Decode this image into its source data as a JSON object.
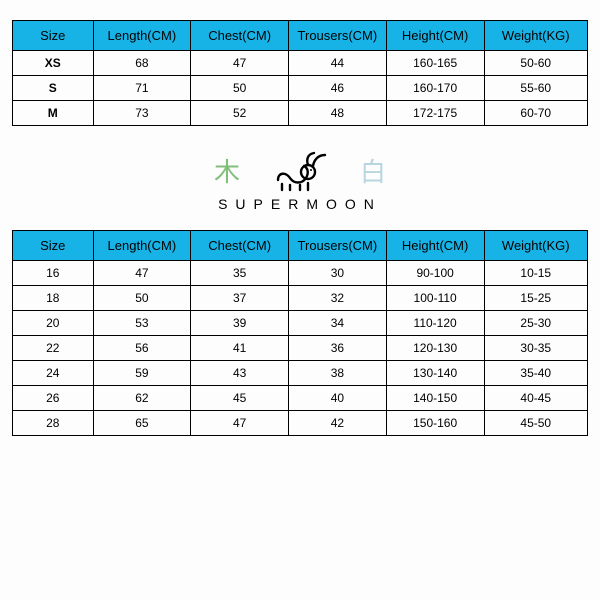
{
  "theme": {
    "header_bg": "#18b3e6",
    "border_color": "#000000",
    "text_color": "#000000",
    "cjk_left_color": "#7fbf7a",
    "cjk_right_color": "#b8d6e0",
    "rabbit_stroke": "#000000"
  },
  "table_adults": {
    "type": "table",
    "columns": [
      "Size",
      "Length(CM)",
      "Chest(CM)",
      "Trousers(CM)",
      "Height(CM)",
      "Weight(KG)"
    ],
    "col_widths_pct": [
      14,
      17,
      17,
      17,
      17,
      18
    ],
    "rows": [
      [
        "XS",
        "68",
        "47",
        "44",
        "160-165",
        "50-60"
      ],
      [
        "S",
        "71",
        "50",
        "46",
        "160-170",
        "55-60"
      ],
      [
        "M",
        "73",
        "52",
        "48",
        "172-175",
        "60-70"
      ]
    ],
    "first_col_bold": true
  },
  "brand": {
    "cjk_left": "木",
    "cjk_right": "白",
    "name": "SUPERMOON"
  },
  "table_kids": {
    "type": "table",
    "columns": [
      "Size",
      "Length(CM)",
      "Chest(CM)",
      "Trousers(CM)",
      "Height(CM)",
      "Weight(KG)"
    ],
    "col_widths_pct": [
      14,
      17,
      17,
      17,
      17,
      18
    ],
    "rows": [
      [
        "16",
        "47",
        "35",
        "30",
        "90-100",
        "10-15"
      ],
      [
        "18",
        "50",
        "37",
        "32",
        "100-110",
        "15-25"
      ],
      [
        "20",
        "53",
        "39",
        "34",
        "110-120",
        "25-30"
      ],
      [
        "22",
        "56",
        "41",
        "36",
        "120-130",
        "30-35"
      ],
      [
        "24",
        "59",
        "43",
        "38",
        "130-140",
        "35-40"
      ],
      [
        "26",
        "62",
        "45",
        "40",
        "140-150",
        "40-45"
      ],
      [
        "28",
        "65",
        "47",
        "42",
        "150-160",
        "45-50"
      ]
    ],
    "first_col_bold": false
  }
}
